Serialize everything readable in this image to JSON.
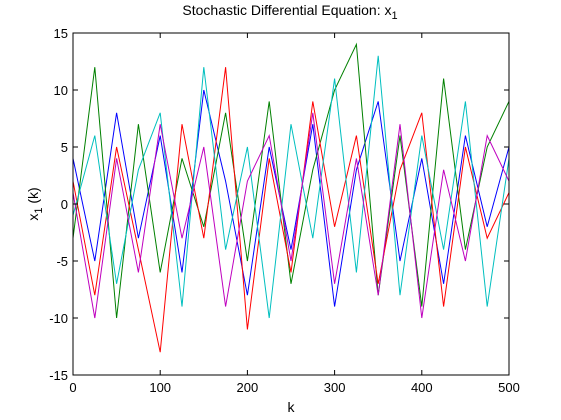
{
  "chart_data": {
    "type": "line",
    "title": "Stochastic Differential Equation: x",
    "title_subscript": "1",
    "xlabel": "k",
    "ylabel": "x",
    "ylabel_subscript": "1",
    "ylabel_suffix": " (k)",
    "xlim": [
      0,
      500
    ],
    "ylim": [
      -15,
      15
    ],
    "xticks": [
      0,
      100,
      200,
      300,
      400,
      500
    ],
    "yticks": [
      -15,
      -10,
      -5,
      0,
      5,
      10,
      15
    ],
    "grid": false,
    "legend": "none",
    "series": [
      {
        "color": "#0000ff",
        "x": [
          0,
          25,
          50,
          75,
          100,
          125,
          150,
          175,
          200,
          225,
          250,
          275,
          300,
          325,
          350,
          375,
          400,
          425,
          450,
          475,
          500
        ],
        "y": [
          4,
          -5,
          8,
          -3,
          6,
          -6,
          10,
          2,
          -8,
          5,
          -4,
          7,
          -9,
          3,
          9,
          -5,
          4,
          -7,
          6,
          -2,
          5
        ]
      },
      {
        "color": "#008000",
        "x": [
          0,
          25,
          50,
          75,
          100,
          125,
          150,
          175,
          200,
          225,
          250,
          275,
          300,
          325,
          350,
          375,
          400,
          425,
          450,
          475,
          500
        ],
        "y": [
          -3,
          12,
          -10,
          7,
          -6,
          4,
          -2,
          8,
          -5,
          9,
          -7,
          3,
          10,
          14,
          -8,
          6,
          -9,
          11,
          -4,
          5,
          9
        ]
      },
      {
        "color": "#ff0000",
        "x": [
          0,
          25,
          50,
          75,
          100,
          125,
          150,
          175,
          200,
          225,
          250,
          275,
          300,
          325,
          350,
          375,
          400,
          425,
          450,
          475,
          500
        ],
        "y": [
          2,
          -8,
          5,
          -4,
          -13,
          7,
          -3,
          12,
          -11,
          4,
          -6,
          9,
          -2,
          6,
          -7,
          3,
          8,
          -9,
          5,
          -3,
          1
        ]
      },
      {
        "color": "#00bfbf",
        "x": [
          0,
          25,
          50,
          75,
          100,
          125,
          150,
          175,
          200,
          225,
          250,
          275,
          300,
          325,
          350,
          375,
          400,
          425,
          450,
          475,
          500
        ],
        "y": [
          -1,
          6,
          -7,
          3,
          8,
          -9,
          12,
          -4,
          5,
          -10,
          7,
          -3,
          11,
          -6,
          13,
          -8,
          6,
          -4,
          9,
          -9,
          4
        ]
      },
      {
        "color": "#bf00bf",
        "x": [
          0,
          25,
          50,
          75,
          100,
          125,
          150,
          175,
          200,
          225,
          250,
          275,
          300,
          325,
          350,
          375,
          400,
          425,
          450,
          475,
          500
        ],
        "y": [
          1,
          -10,
          4,
          -6,
          7,
          -3,
          5,
          -9,
          2,
          6,
          -5,
          8,
          -7,
          4,
          -8,
          7,
          -10,
          3,
          -5,
          6,
          2
        ]
      }
    ]
  }
}
